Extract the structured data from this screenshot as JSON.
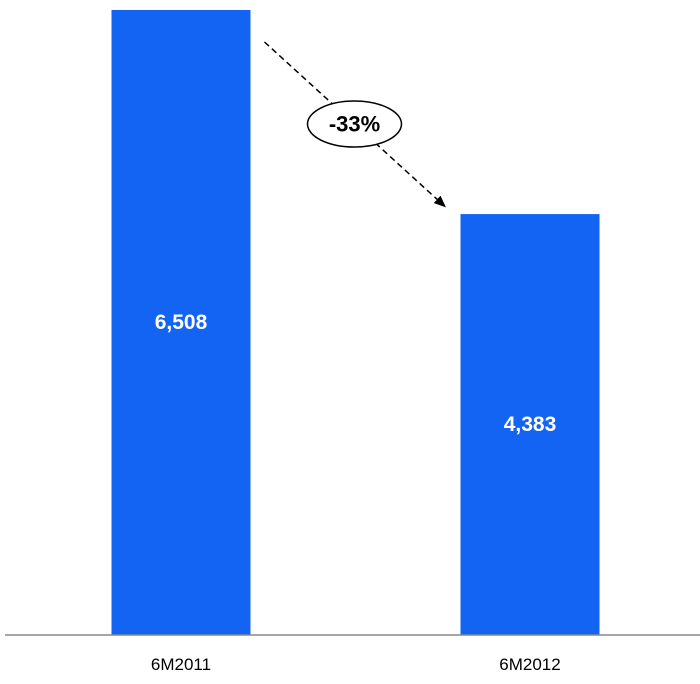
{
  "chart_data": {
    "type": "bar",
    "categories": [
      "6M2011",
      "6M2012"
    ],
    "values": [
      6508,
      4383
    ],
    "value_labels": [
      "6,508",
      "4,383"
    ],
    "change_annotation": "-33%",
    "bar_color": "#1464F4",
    "grid": false,
    "legend": "none"
  }
}
